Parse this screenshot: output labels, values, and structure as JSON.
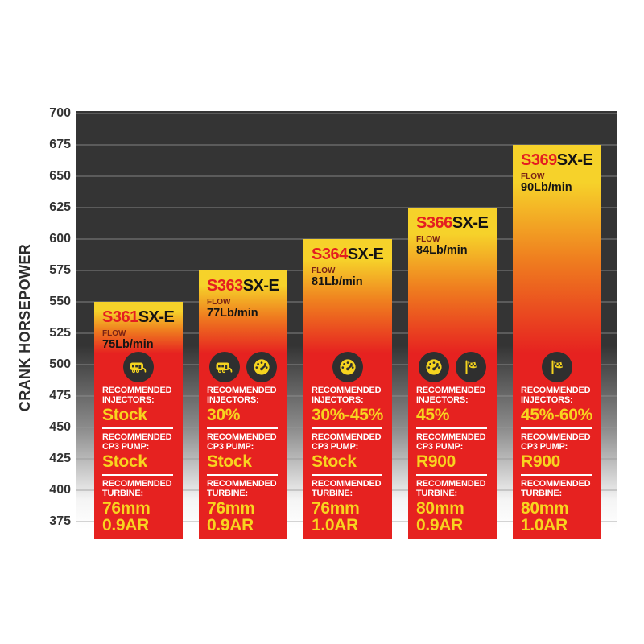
{
  "y_axis": {
    "label": "CRANK HORSEPOWER",
    "ticks": [
      700,
      675,
      650,
      625,
      600,
      575,
      550,
      525,
      500,
      475,
      450,
      425,
      400,
      375
    ]
  },
  "colors": {
    "plot_bg_dark": "#343434",
    "bar_yellow_top": "#f6d22a",
    "bar_orange_mid": "#ef7e1f",
    "bar_red": "#e62220",
    "model_red": "#e41e20",
    "model_black": "#141414",
    "flow_label_maroon": "#7a2315",
    "value_yellow": "#f8d41f",
    "label_white": "#ffffff",
    "icon_circle_dark": "#2f2f2f",
    "icon_glyph_yellow": "#f5d41f",
    "axis_text": "#333333"
  },
  "chart_data": {
    "type": "bar",
    "title": "",
    "xlabel": "",
    "ylabel": "CRANK HORSEPOWER",
    "ylim": [
      375,
      700
    ],
    "grid": true,
    "categories": [
      "S361SX-E",
      "S363SX-E",
      "S364SX-E",
      "S366SX-E",
      "S369SX-E"
    ],
    "values": [
      550,
      575,
      600,
      625,
      675
    ],
    "bars": [
      {
        "model_prefix": "S361",
        "model_suffix": "SX-E",
        "flow_label": "FLOW",
        "flow_value": "75Lb/min",
        "crank_hp": 550,
        "icons": [
          "camper-icon"
        ],
        "injectors_label_line1": "RECOMMENDED",
        "injectors_label_line2": "INJECTORS:",
        "injectors_value": "Stock",
        "cp3_label_line1": "RECOMMENDED",
        "cp3_label_line2": "CP3 PUMP:",
        "cp3_value": "Stock",
        "turbine_label_line1": "RECOMMENDED",
        "turbine_label_line2": "TURBINE:",
        "turbine_value_line1": "76mm",
        "turbine_value_line2": "0.9AR"
      },
      {
        "model_prefix": "S363",
        "model_suffix": "SX-E",
        "flow_label": "FLOW",
        "flow_value": "77Lb/min",
        "crank_hp": 575,
        "icons": [
          "camper-icon",
          "gauge-icon"
        ],
        "injectors_label_line1": "RECOMMENDED",
        "injectors_label_line2": "INJECTORS:",
        "injectors_value": "30%",
        "cp3_label_line1": "RECOMMENDED",
        "cp3_label_line2": "CP3 PUMP:",
        "cp3_value": "Stock",
        "turbine_label_line1": "RECOMMENDED",
        "turbine_label_line2": "TURBINE:",
        "turbine_value_line1": "76mm",
        "turbine_value_line2": "0.9AR"
      },
      {
        "model_prefix": "S364",
        "model_suffix": "SX-E",
        "flow_label": "FLOW",
        "flow_value": "81Lb/min",
        "crank_hp": 600,
        "icons": [
          "gauge-icon"
        ],
        "injectors_label_line1": "RECOMMENDED",
        "injectors_label_line2": "INJECTORS:",
        "injectors_value": "30%-45%",
        "cp3_label_line1": "RECOMMENDED",
        "cp3_label_line2": "CP3 PUMP:",
        "cp3_value": "Stock",
        "turbine_label_line1": "RECOMMENDED",
        "turbine_label_line2": "TURBINE:",
        "turbine_value_line1": "76mm",
        "turbine_value_line2": "1.0AR"
      },
      {
        "model_prefix": "S366",
        "model_suffix": "SX-E",
        "flow_label": "FLOW",
        "flow_value": "84Lb/min",
        "crank_hp": 625,
        "icons": [
          "gauge-icon",
          "flag-icon"
        ],
        "injectors_label_line1": "RECOMMENDED",
        "injectors_label_line2": "INJECTORS:",
        "injectors_value": "45%",
        "cp3_label_line1": "RECOMMENDED",
        "cp3_label_line2": "CP3 PUMP:",
        "cp3_value": "R900",
        "turbine_label_line1": "RECOMMENDED",
        "turbine_label_line2": "TURBINE:",
        "turbine_value_line1": "80mm",
        "turbine_value_line2": "0.9AR"
      },
      {
        "model_prefix": "S369",
        "model_suffix": "SX-E",
        "flow_label": "FLOW",
        "flow_value": "90Lb/min",
        "crank_hp": 675,
        "icons": [
          "flag-icon"
        ],
        "injectors_label_line1": "RECOMMENDED",
        "injectors_label_line2": "INJECTORS:",
        "injectors_value": "45%-60%",
        "cp3_label_line1": "RECOMMENDED",
        "cp3_label_line2": "CP3 PUMP:",
        "cp3_value": "R900",
        "turbine_label_line1": "RECOMMENDED",
        "turbine_label_line2": "TURBINE:",
        "turbine_value_line1": "80mm",
        "turbine_value_line2": "1.0AR"
      }
    ]
  }
}
